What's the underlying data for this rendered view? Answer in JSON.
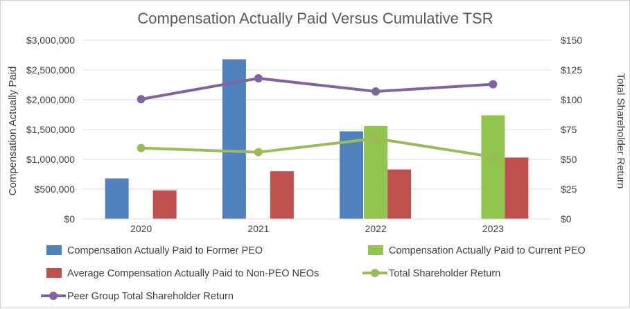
{
  "chart_data": {
    "type": "bar+line",
    "title": "Compensation Actually Paid Versus Cumulative TSR",
    "categories": [
      "2020",
      "2021",
      "2022",
      "2023"
    ],
    "ylabel": "Compensation Actually Paid",
    "y2label": "Total Shareholder Return",
    "ylim": [
      0,
      3000000
    ],
    "y2lim": [
      0,
      150
    ],
    "yticks": [
      "$0",
      "$500,000",
      "$1,000,000",
      "$1,500,000",
      "$2,000,000",
      "$2,500,000",
      "$3,000,000"
    ],
    "y2ticks": [
      "$0",
      "$25",
      "$50",
      "$75",
      "$100",
      "$125",
      "$150"
    ],
    "grid": true,
    "legend_position": "bottom",
    "bar_series": [
      {
        "name": "Compensation Actually Paid to Former PEO",
        "color": "#4f81bd",
        "values": [
          680000,
          2680000,
          1470000,
          null
        ]
      },
      {
        "name": "Compensation Actually Paid to Current PEO",
        "color": "#92c450",
        "values": [
          null,
          null,
          1560000,
          1740000
        ]
      },
      {
        "name": "Average Compensation Actually Paid to Non-PEO NEOs",
        "color": "#c0504d",
        "values": [
          480000,
          800000,
          830000,
          1030000
        ]
      }
    ],
    "line_series": [
      {
        "name": "Total Shareholder Return",
        "color": "#9bbb59",
        "axis": "right",
        "values": [
          59.5,
          56,
          67.5,
          52
        ]
      },
      {
        "name": "Peer Group Total Shareholder Return",
        "color": "#8064a2",
        "axis": "right",
        "values": [
          100.5,
          118,
          107,
          113
        ]
      }
    ],
    "legend": [
      {
        "label": "Compensation Actually Paid to Former PEO",
        "kind": "bar",
        "color": "#4f81bd"
      },
      {
        "label": "Compensation Actually Paid to Current PEO",
        "kind": "bar",
        "color": "#92c450"
      },
      {
        "label": "Average Compensation Actually Paid to Non-PEO NEOs",
        "kind": "bar",
        "color": "#c0504d"
      },
      {
        "label": "Total Shareholder Return",
        "kind": "line",
        "color": "#9bbb59"
      },
      {
        "label": "Peer Group Total Shareholder Return",
        "kind": "line",
        "color": "#8064a2"
      }
    ]
  }
}
